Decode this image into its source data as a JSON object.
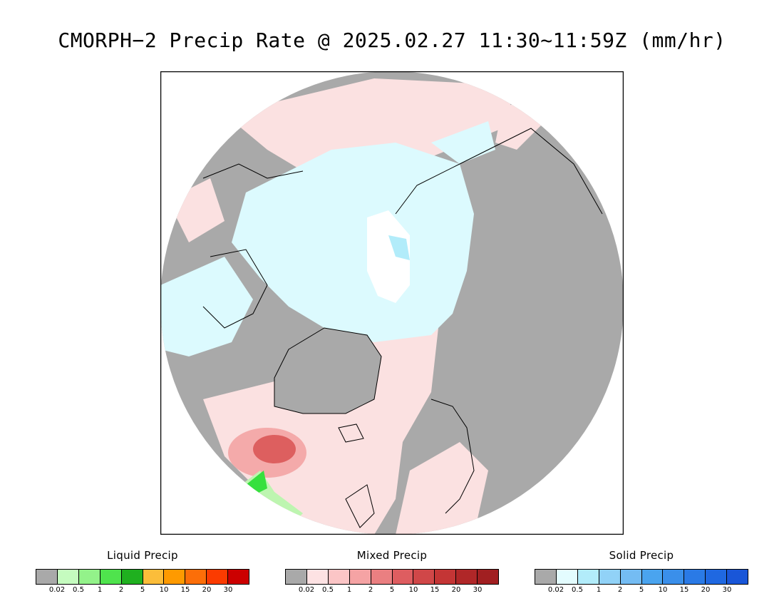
{
  "title": "CMORPH−2 Precip Rate @ 2025.02.27 11:30~11:59Z (mm/hr)",
  "map": {
    "projection": "north-polar-stereographic",
    "background_color": "#a9a9a9",
    "colors": {
      "no_data": "#a9a9a9",
      "light_mixed": "#fbe1e1",
      "light_solid": "#dcfafe",
      "mid_mixed": "#f4aaaa",
      "heavy_mixed": "#dd5f5f",
      "light_liquid": "#bdf5b0",
      "mid_liquid": "#36e03e",
      "snow_white": "#ffffff"
    }
  },
  "legends": [
    {
      "title": "Liquid Precip",
      "colors": [
        "#a9a9a9",
        "#c5fbbf",
        "#93f28a",
        "#4fe34d",
        "#1fb01f",
        "#fbbd3a",
        "#fe9a00",
        "#fc6e08",
        "#fb3b00",
        "#cc0000"
      ],
      "ticks": [
        "0.02",
        "0.5",
        "1",
        "2",
        "5",
        "10",
        "15",
        "20",
        "30"
      ]
    },
    {
      "title": "Mixed Precip",
      "colors": [
        "#a9a9a9",
        "#fde2e3",
        "#fbc5c6",
        "#f5a3a4",
        "#ea7f81",
        "#de5d60",
        "#d04748",
        "#c43535",
        "#b02728",
        "#a11f21"
      ],
      "ticks": [
        "0.02",
        "0.5",
        "1",
        "2",
        "5",
        "10",
        "15",
        "20",
        "30"
      ]
    },
    {
      "title": "Solid Precip",
      "colors": [
        "#a9a9a9",
        "#e3fcfe",
        "#b2ecfa",
        "#91d2f7",
        "#74bcf3",
        "#4aa4ef",
        "#3a8fea",
        "#2a7ae6",
        "#1f68e1",
        "#1956d8"
      ],
      "ticks": [
        "0.02",
        "0.5",
        "1",
        "2",
        "5",
        "10",
        "15",
        "20",
        "30"
      ]
    }
  ]
}
